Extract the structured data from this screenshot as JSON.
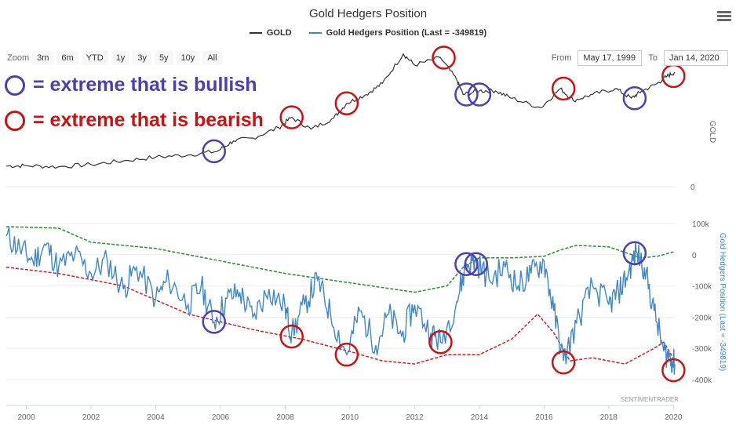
{
  "header": {
    "title": "Gold Hedgers Position",
    "legend": [
      {
        "label": "GOLD",
        "color": "#333333"
      },
      {
        "label": "Gold Hedgers Position (Last = -349819)",
        "color": "#3f87c8"
      }
    ],
    "menu_icon": "hamburger-menu-icon"
  },
  "zoom": {
    "label": "Zoom",
    "buttons": [
      "3m",
      "6m",
      "YTD",
      "1y",
      "3y",
      "5y",
      "10y",
      "All"
    ]
  },
  "range": {
    "from_label": "From",
    "from_value": "May 17, 1999",
    "to_label": "To",
    "to_value": "Jan 14, 2020"
  },
  "annotations": {
    "bullish_text": "= extreme that is bullish",
    "bearish_text": "= extreme that is bearish",
    "bullish_color": "#4b3fb8",
    "bearish_color": "#cc1111"
  },
  "credit": "SENTIMENTRADER",
  "chart_data": {
    "type": "line",
    "x_axis": {
      "ticks": [
        "2000",
        "2002",
        "2004",
        "2006",
        "2008",
        "2010",
        "2012",
        "2014",
        "2016",
        "2018",
        "2020"
      ],
      "range": [
        1999.38,
        2020.04
      ]
    },
    "panels": [
      {
        "name": "GOLD",
        "ylabel": "GOLD",
        "y_ticks": [
          "0"
        ],
        "series": [
          {
            "name": "GOLD",
            "color": "#333333",
            "points": [
              [
                1999.38,
                280
              ],
              [
                2000,
                285
              ],
              [
                2001,
                270
              ],
              [
                2002,
                300
              ],
              [
                2003,
                350
              ],
              [
                2004,
                400
              ],
              [
                2005,
                430
              ],
              [
                2005.9,
                480
              ],
              [
                2006.4,
                620
              ],
              [
                2007,
                660
              ],
              [
                2007.8,
                800
              ],
              [
                2008.2,
                940
              ],
              [
                2008.8,
                780
              ],
              [
                2009.5,
                930
              ],
              [
                2009.9,
                1130
              ],
              [
                2010.5,
                1250
              ],
              [
                2011,
                1400
              ],
              [
                2011.65,
                1800
              ],
              [
                2012,
                1650
              ],
              [
                2012.8,
                1750
              ],
              [
                2013.3,
                1450
              ],
              [
                2013.5,
                1250
              ],
              [
                2014,
                1300
              ],
              [
                2014.5,
                1300
              ],
              [
                2015,
                1200
              ],
              [
                2015.9,
                1070
              ],
              [
                2016.5,
                1330
              ],
              [
                2016.9,
                1170
              ],
              [
                2017.5,
                1250
              ],
              [
                2018.2,
                1330
              ],
              [
                2018.7,
                1200
              ],
              [
                2019,
                1290
              ],
              [
                2019.5,
                1400
              ],
              [
                2019.8,
                1500
              ],
              [
                2020.04,
                1550
              ]
            ]
          }
        ],
        "circles": [
          {
            "kind": "bullish",
            "x": 2005.8,
            "y": 480
          },
          {
            "kind": "bearish",
            "x": 2008.2,
            "y": 940
          },
          {
            "kind": "bearish",
            "x": 2009.9,
            "y": 1130
          },
          {
            "kind": "bearish",
            "x": 2012.9,
            "y": 1750
          },
          {
            "kind": "bullish",
            "x": 2013.6,
            "y": 1250
          },
          {
            "kind": "bullish",
            "x": 2014.0,
            "y": 1250
          },
          {
            "kind": "bearish",
            "x": 2016.6,
            "y": 1330
          },
          {
            "kind": "bullish",
            "x": 2018.8,
            "y": 1200
          },
          {
            "kind": "bearish",
            "x": 2020.0,
            "y": 1500
          }
        ]
      },
      {
        "name": "Gold Hedgers Position",
        "ylabel": "Gold Hedgers Position (Last = -349819)",
        "y_ticks": [
          "100k",
          "0",
          "-100k",
          "-200k",
          "-300k",
          "-400k"
        ],
        "ylim": [
          -415000,
          115000
        ],
        "series": [
          {
            "name": "Gold Hedgers Position",
            "color": "#3f87c8",
            "points": [
              [
                1999.38,
                60000
              ],
              [
                1999.8,
                20000
              ],
              [
                2000.2,
                -20000
              ],
              [
                2000.6,
                30000
              ],
              [
                2001,
                -40000
              ],
              [
                2001.5,
                0
              ],
              [
                2002,
                -60000
              ],
              [
                2002.5,
                -20000
              ],
              [
                2003,
                -110000
              ],
              [
                2003.4,
                -40000
              ],
              [
                2004,
                -140000
              ],
              [
                2004.4,
                -80000
              ],
              [
                2005,
                -160000
              ],
              [
                2005.4,
                -100000
              ],
              [
                2005.8,
                -215000
              ],
              [
                2006.2,
                -140000
              ],
              [
                2006.6,
                -120000
              ],
              [
                2007,
                -200000
              ],
              [
                2007.5,
                -110000
              ],
              [
                2008,
                -170000
              ],
              [
                2008.2,
                -255000
              ],
              [
                2008.6,
                -160000
              ],
              [
                2009,
                -80000
              ],
              [
                2009.4,
                -190000
              ],
              [
                2009.9,
                -320000
              ],
              [
                2010.3,
                -180000
              ],
              [
                2010.8,
                -290000
              ],
              [
                2011.2,
                -190000
              ],
              [
                2011.6,
                -260000
              ],
              [
                2012,
                -160000
              ],
              [
                2012.5,
                -250000
              ],
              [
                2012.8,
                -280000
              ],
              [
                2013.3,
                -150000
              ],
              [
                2013.6,
                -30000
              ],
              [
                2013.9,
                -20000
              ],
              [
                2014.3,
                -80000
              ],
              [
                2014.8,
                -40000
              ],
              [
                2015.2,
                -100000
              ],
              [
                2015.6,
                -60000
              ],
              [
                2016,
                -20000
              ],
              [
                2016.3,
                -180000
              ],
              [
                2016.6,
                -340000
              ],
              [
                2017,
                -220000
              ],
              [
                2017.5,
                -100000
              ],
              [
                2018,
                -160000
              ],
              [
                2018.3,
                -120000
              ],
              [
                2018.6,
                -60000
              ],
              [
                2018.85,
                10000
              ],
              [
                2019.1,
                -40000
              ],
              [
                2019.4,
                -180000
              ],
              [
                2019.7,
                -310000
              ],
              [
                2019.9,
                -330000
              ],
              [
                2020.04,
                -349819
              ]
            ]
          },
          {
            "name": "Upper band",
            "color": "#2e8b2e",
            "dashed": true,
            "points": [
              [
                1999.38,
                90000
              ],
              [
                2001,
                85000
              ],
              [
                2002,
                40000
              ],
              [
                2004,
                20000
              ],
              [
                2006,
                -20000
              ],
              [
                2008,
                -60000
              ],
              [
                2010,
                -90000
              ],
              [
                2012,
                -120000
              ],
              [
                2013,
                -100000
              ],
              [
                2013.5,
                -40000
              ],
              [
                2014,
                -10000
              ],
              [
                2015,
                -10000
              ],
              [
                2016,
                -5000
              ],
              [
                2016.5,
                15000
              ],
              [
                2017,
                30000
              ],
              [
                2018,
                25000
              ],
              [
                2019,
                -10000
              ],
              [
                2019.5,
                -5000
              ],
              [
                2020.04,
                10000
              ]
            ]
          },
          {
            "name": "Lower band",
            "color": "#cc2222",
            "dashed": true,
            "points": [
              [
                1999.38,
                -40000
              ],
              [
                2001,
                -60000
              ],
              [
                2003,
                -100000
              ],
              [
                2005,
                -190000
              ],
              [
                2007,
                -240000
              ],
              [
                2008.5,
                -270000
              ],
              [
                2010,
                -310000
              ],
              [
                2011,
                -340000
              ],
              [
                2012,
                -350000
              ],
              [
                2013,
                -320000
              ],
              [
                2014,
                -320000
              ],
              [
                2015,
                -270000
              ],
              [
                2015.8,
                -190000
              ],
              [
                2016.3,
                -250000
              ],
              [
                2016.8,
                -340000
              ],
              [
                2017.5,
                -330000
              ],
              [
                2018.5,
                -350000
              ],
              [
                2019.4,
                -300000
              ],
              [
                2019.7,
                -280000
              ],
              [
                2020.04,
                -340000
              ]
            ]
          }
        ],
        "circles": [
          {
            "kind": "bullish",
            "x": 2005.8,
            "y": -215000
          },
          {
            "kind": "bearish",
            "x": 2008.2,
            "y": -262000
          },
          {
            "kind": "bearish",
            "x": 2009.9,
            "y": -320000
          },
          {
            "kind": "bearish",
            "x": 2012.8,
            "y": -280000
          },
          {
            "kind": "bullish",
            "x": 2013.6,
            "y": -30000
          },
          {
            "kind": "bullish",
            "x": 2013.9,
            "y": -30000
          },
          {
            "kind": "bearish",
            "x": 2016.6,
            "y": -345000
          },
          {
            "kind": "bullish",
            "x": 2018.8,
            "y": 5000
          },
          {
            "kind": "bearish",
            "x": 2020.0,
            "y": -370000
          }
        ]
      }
    ]
  }
}
